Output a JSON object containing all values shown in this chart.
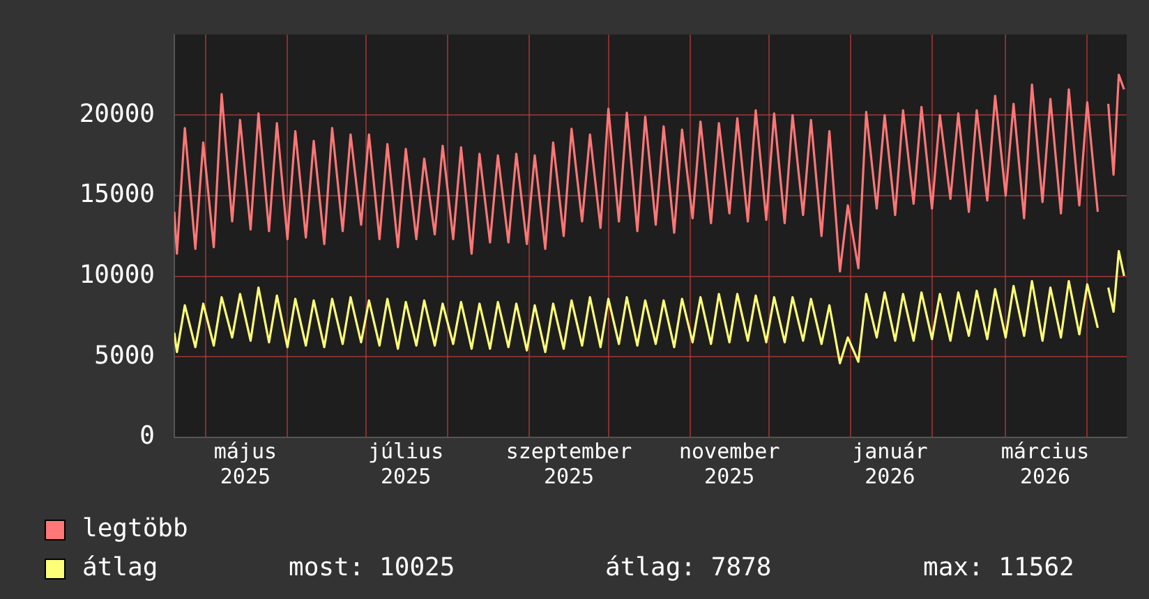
{
  "chart_data": {
    "type": "line",
    "x": [
      "2025-04-19",
      "2025-04-20",
      "2025-04-23",
      "2025-04-27",
      "2025-04-30",
      "2025-05-04",
      "2025-05-07",
      "2025-05-11",
      "2025-05-14",
      "2025-05-18",
      "2025-05-21",
      "2025-05-25",
      "2025-05-28",
      "2025-06-01",
      "2025-06-04",
      "2025-06-08",
      "2025-06-11",
      "2025-06-15",
      "2025-06-18",
      "2025-06-22",
      "2025-06-25",
      "2025-06-29",
      "2025-07-02",
      "2025-07-06",
      "2025-07-09",
      "2025-07-13",
      "2025-07-16",
      "2025-07-20",
      "2025-07-23",
      "2025-07-27",
      "2025-07-30",
      "2025-08-03",
      "2025-08-06",
      "2025-08-10",
      "2025-08-13",
      "2025-08-17",
      "2025-08-20",
      "2025-08-24",
      "2025-08-27",
      "2025-08-31",
      "2025-09-03",
      "2025-09-07",
      "2025-09-10",
      "2025-09-14",
      "2025-09-17",
      "2025-09-21",
      "2025-09-24",
      "2025-09-28",
      "2025-10-01",
      "2025-10-05",
      "2025-10-08",
      "2025-10-12",
      "2025-10-15",
      "2025-10-19",
      "2025-10-22",
      "2025-10-26",
      "2025-10-29",
      "2025-11-02",
      "2025-11-05",
      "2025-11-09",
      "2025-11-12",
      "2025-11-16",
      "2025-11-19",
      "2025-11-23",
      "2025-11-26",
      "2025-11-30",
      "2025-12-03",
      "2025-12-07",
      "2025-12-10",
      "2025-12-14",
      "2025-12-17",
      "2025-12-21",
      "2025-12-24",
      "2025-12-28",
      "2025-12-31",
      "2026-01-04",
      "2026-01-07",
      "2026-01-11",
      "2026-01-14",
      "2026-01-18",
      "2026-01-21",
      "2026-01-25",
      "2026-01-28",
      "2026-02-01",
      "2026-02-04",
      "2026-02-08",
      "2026-02-11",
      "2026-02-15",
      "2026-02-18",
      "2026-02-22",
      "2026-02-25",
      "2026-03-01",
      "2026-03-04",
      "2026-03-08",
      "2026-03-11",
      "2026-03-15",
      "2026-03-18",
      "2026-03-22",
      "2026-03-25",
      "2026-03-29",
      "2026-04-01",
      "2026-04-05",
      "2026-04-07",
      "2026-04-09",
      "2026-04-11",
      "2026-04-13",
      "2026-04-15"
    ],
    "series": [
      {
        "name": "legtöbb",
        "color": "#ff7777",
        "values": [
          14000,
          11400,
          19200,
          11700,
          18300,
          11800,
          21300,
          13400,
          19700,
          12900,
          20100,
          12800,
          19500,
          12300,
          19000,
          12400,
          18400,
          12000,
          19200,
          12800,
          18800,
          13200,
          18800,
          12300,
          18200,
          11800,
          17900,
          12300,
          17300,
          12600,
          18100,
          12300,
          18000,
          11400,
          17600,
          12100,
          17500,
          12100,
          17600,
          12000,
          17500,
          11700,
          18300,
          12500,
          19150,
          13400,
          18800,
          13000,
          20400,
          13400,
          20150,
          12800,
          19900,
          13200,
          19300,
          12700,
          19100,
          13600,
          19600,
          13300,
          19500,
          13900,
          19800,
          13400,
          20300,
          13500,
          20100,
          13300,
          20000,
          13800,
          19700,
          12500,
          19000,
          10300,
          14400,
          10500,
          20200,
          14200,
          20000,
          13800,
          20300,
          14500,
          20500,
          14200,
          20000,
          14800,
          20100,
          14000,
          20300,
          14700,
          21200,
          15000,
          20700,
          13600,
          21900,
          14600,
          21000,
          13900,
          21600,
          14400,
          20800,
          14000,
          null,
          20700,
          16300,
          22500,
          21600
        ]
      },
      {
        "name": "átlag",
        "color": "#ffff77",
        "values": [
          6500,
          5300,
          8200,
          5600,
          8300,
          5700,
          8700,
          6200,
          8900,
          6000,
          9300,
          5900,
          8800,
          5600,
          8600,
          5700,
          8500,
          5600,
          8600,
          5800,
          8700,
          5900,
          8500,
          5700,
          8600,
          5500,
          8400,
          5700,
          8500,
          5700,
          8300,
          5800,
          8400,
          5500,
          8300,
          5500,
          8400,
          5600,
          8300,
          5400,
          8200,
          5300,
          8300,
          5500,
          8500,
          5700,
          8700,
          5600,
          8600,
          5800,
          8700,
          5700,
          8500,
          5800,
          8500,
          5600,
          8600,
          5900,
          8700,
          5800,
          8900,
          5900,
          8900,
          6000,
          8800,
          5900,
          8700,
          5900,
          8700,
          6000,
          8600,
          5800,
          8200,
          4600,
          6200,
          4700,
          8900,
          6200,
          9000,
          6000,
          8900,
          6000,
          9000,
          6100,
          8900,
          6000,
          9000,
          6300,
          9100,
          6100,
          9200,
          6200,
          9400,
          6300,
          9700,
          6000,
          9300,
          6200,
          9700,
          6400,
          9500,
          6800,
          null,
          9300,
          7800,
          11562,
          10025
        ]
      }
    ],
    "xlim": [
      "2025-04-19",
      "2026-04-16"
    ],
    "xticks": [
      {
        "value": "2025-05-01",
        "label": null
      },
      {
        "value": "2025-05-16",
        "label": "május 2025"
      },
      {
        "value": "2025-06-01",
        "label": null
      },
      {
        "value": "2025-07-01",
        "label": null
      },
      {
        "value": "2025-07-16",
        "label": "július 2025"
      },
      {
        "value": "2025-08-01",
        "label": null
      },
      {
        "value": "2025-09-01",
        "label": null
      },
      {
        "value": "2025-09-16",
        "label": "szeptember 2025"
      },
      {
        "value": "2025-10-01",
        "label": null
      },
      {
        "value": "2025-11-01",
        "label": null
      },
      {
        "value": "2025-11-16",
        "label": "november 2025"
      },
      {
        "value": "2025-12-01",
        "label": null
      },
      {
        "value": "2026-01-01",
        "label": null
      },
      {
        "value": "2026-01-16",
        "label": "január 2026"
      },
      {
        "value": "2026-02-01",
        "label": null
      },
      {
        "value": "2026-03-01",
        "label": null
      },
      {
        "value": "2026-03-16",
        "label": "március 2026"
      },
      {
        "value": "2026-04-01",
        "label": null
      }
    ],
    "ylim": [
      0,
      25000
    ],
    "yticks": [
      0,
      5000,
      10000,
      15000,
      20000
    ],
    "grid": true,
    "legend": "bottom left",
    "marker": "none",
    "line_style": "solid",
    "annotations": [
      "most: 10025",
      "átlag: 7878",
      "max: 11562"
    ]
  }
}
